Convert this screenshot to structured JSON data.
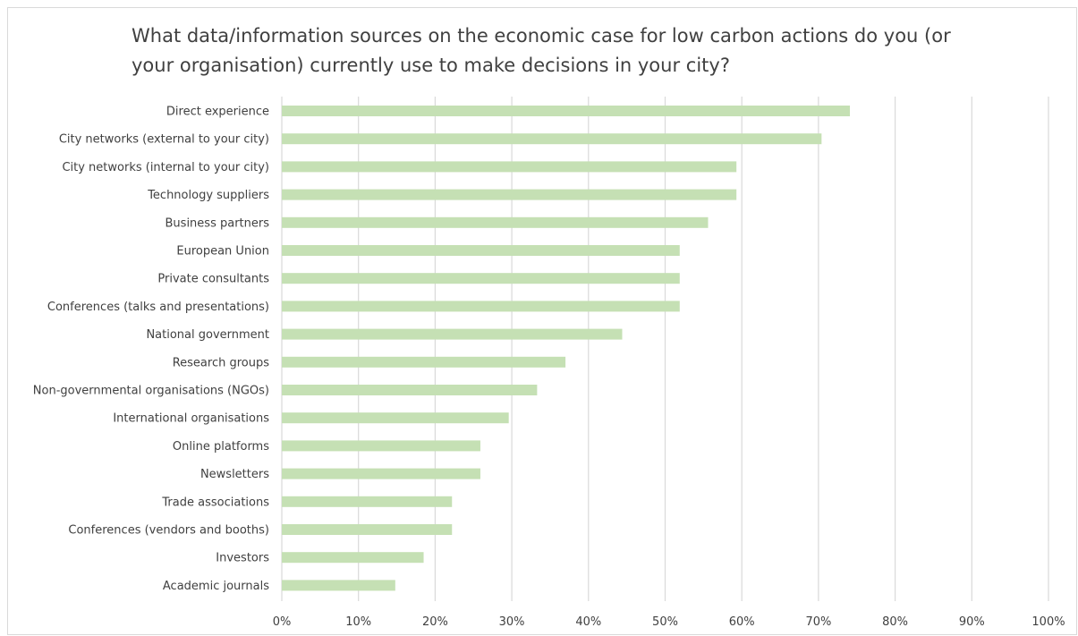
{
  "chart_data": {
    "type": "bar",
    "orientation": "horizontal",
    "title_lines": [
      "What data/information sources on the economic case for low carbon actions do you (or",
      "your organisation) currently use to make decisions in your city?"
    ],
    "categories": [
      "Direct experience",
      "City networks (external to your city)",
      "City networks (internal to your city)",
      "Technology suppliers",
      "Business partners",
      "European Union",
      "Private consultants",
      "Conferences (talks and presentations)",
      "National government",
      "Research groups",
      "Non-governmental organisations (NGOs)",
      "International organisations",
      "Online platforms",
      "Newsletters",
      "Trade associations",
      "Conferences (vendors and booths)",
      "Investors",
      "Academic journals"
    ],
    "values": [
      74.1,
      70.4,
      59.3,
      59.3,
      55.6,
      51.9,
      51.9,
      51.9,
      44.4,
      37.0,
      33.3,
      29.6,
      25.9,
      25.9,
      22.2,
      22.2,
      18.5,
      14.8
    ],
    "xlim": [
      0,
      100
    ],
    "xticks": [
      "0%",
      "10%",
      "20%",
      "30%",
      "40%",
      "50%",
      "60%",
      "70%",
      "80%",
      "90%",
      "100%"
    ],
    "grid": "vertical",
    "bar_color": "#c5e0b4",
    "grid_color": "#d9d9d9",
    "text_color": "#404040"
  }
}
